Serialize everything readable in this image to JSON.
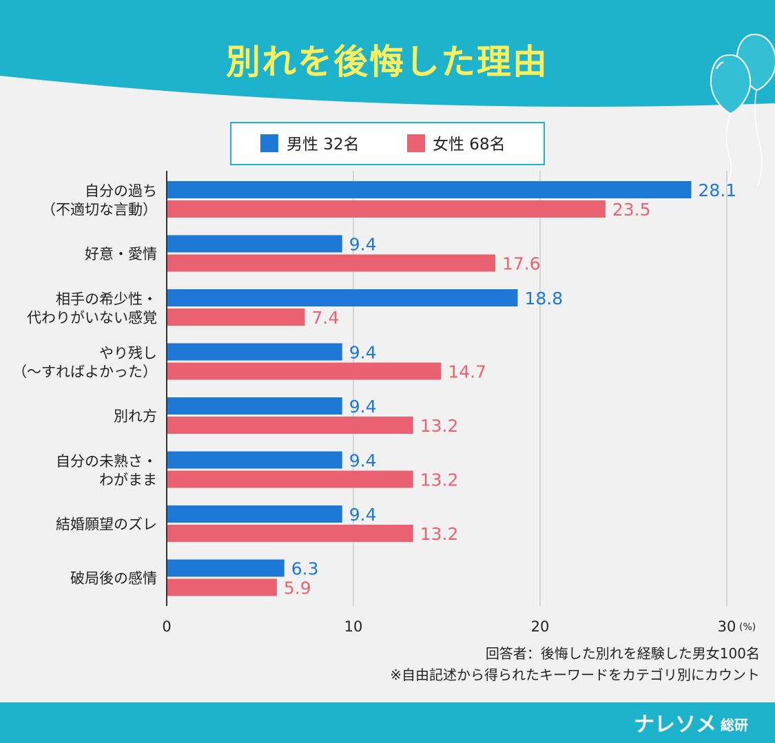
{
  "header": {
    "title": "別れを後悔した理由"
  },
  "legend": {
    "male_label": "男性 32名",
    "female_label": "女性 68名"
  },
  "colors": {
    "teal": "#1db3cc",
    "male": "#1d78d6",
    "female": "#ea6271",
    "title_text": "#fbef5e"
  },
  "chart_data": {
    "type": "bar",
    "orientation": "horizontal",
    "title": "別れを後悔した理由",
    "categories": [
      [
        "自分の過ち",
        "（不適切な言動）"
      ],
      [
        "好意・愛情"
      ],
      [
        "相手の希少性・",
        "代わりがいない感覚"
      ],
      [
        "やり残し",
        "（～すればよかった）"
      ],
      [
        "別れ方"
      ],
      [
        "自分の未熟さ・",
        "わがまま"
      ],
      [
        "結婚願望のズレ"
      ],
      [
        "破局後の感情"
      ]
    ],
    "series": [
      {
        "name": "男性 32名",
        "values": [
          28.1,
          9.4,
          18.8,
          9.4,
          9.4,
          9.4,
          9.4,
          6.3
        ]
      },
      {
        "name": "女性 68名",
        "values": [
          23.5,
          17.6,
          7.4,
          14.7,
          13.2,
          13.2,
          13.2,
          5.9
        ]
      }
    ],
    "xlim": [
      0,
      30
    ],
    "xticks": [
      "0",
      "10",
      "20",
      "30"
    ],
    "xunit": "(%)",
    "grid": true,
    "legend_position": "top"
  },
  "notes": [
    "回答者：後悔した別れを経験した男女100名",
    "※自由記述から得られたキーワードをカテゴリ別にカウント"
  ],
  "brand": {
    "name": "ナレソメ",
    "sub": "総研"
  }
}
